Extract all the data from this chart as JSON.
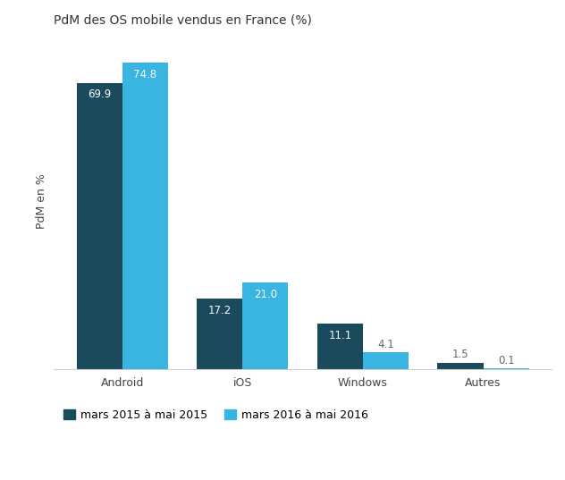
{
  "title": "PdM des OS mobile vendus en France (%)",
  "ylabel": "PdM en %",
  "categories": [
    "Android",
    "iOS",
    "Windows",
    "Autres"
  ],
  "series": [
    {
      "label": "mars 2015 à mai 2015",
      "values": [
        69.9,
        17.2,
        11.1,
        1.5
      ],
      "color": "#1a4a5c"
    },
    {
      "label": "mars 2016 à mai 2016",
      "values": [
        74.8,
        21.0,
        4.1,
        0.1
      ],
      "color": "#3ab4e0"
    }
  ],
  "bar_width": 0.38,
  "ylim": [
    0,
    82
  ],
  "background_color": "#ffffff",
  "label_color_inside": "#ffffff",
  "label_color_outside": "#666666",
  "title_fontsize": 10,
  "axis_fontsize": 9,
  "tick_fontsize": 9,
  "legend_fontsize": 9,
  "value_fontsize": 8.5,
  "inside_threshold": 6.0
}
